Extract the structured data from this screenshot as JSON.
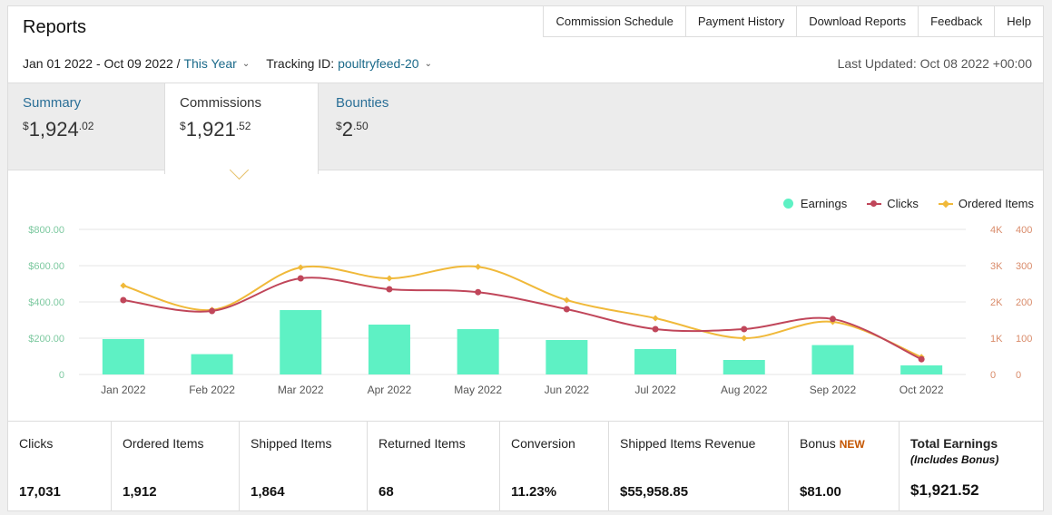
{
  "header": {
    "title": "Reports"
  },
  "topnav": [
    "Commission Schedule",
    "Payment History",
    "Download Reports",
    "Feedback",
    "Help"
  ],
  "filters": {
    "date_range": "Jan 01 2022 - Oct 09 2022 /",
    "period": "This Year",
    "tracking_label": "Tracking ID:",
    "tracking_id": "poultryfeed-20",
    "last_updated": "Last Updated: Oct 08 2022 +00:00"
  },
  "tabs": [
    {
      "label": "Summary",
      "currency": "$",
      "amount": "1,924",
      "cents": ".02",
      "active": false
    },
    {
      "label": "Commissions",
      "currency": "$",
      "amount": "1,921",
      "cents": ".52",
      "active": true
    },
    {
      "label": "Bounties",
      "currency": "$",
      "amount": "2",
      "cents": ".50",
      "active": false
    }
  ],
  "legend": {
    "earnings": "Earnings",
    "clicks": "Clicks",
    "ordered": "Ordered Items"
  },
  "colors": {
    "earnings": "#5ef1c4",
    "clicks": "#c0465a",
    "ordered": "#f0b93a",
    "left_axis": "#7dc9a0",
    "right_axis": "#d98b6a",
    "link": "#2a6f97",
    "new_badge": "#c45500"
  },
  "chart_data": {
    "type": "bar",
    "categories": [
      "Jan 2022",
      "Feb 2022",
      "Mar 2022",
      "Apr 2022",
      "May 2022",
      "Jun 2022",
      "Jul 2022",
      "Aug 2022",
      "Sep 2022",
      "Oct 2022"
    ],
    "series": [
      {
        "name": "Earnings",
        "type": "bar",
        "axis": "left",
        "values": [
          195,
          112,
          355,
          275,
          250,
          190,
          140,
          80,
          162,
          50
        ]
      },
      {
        "name": "Clicks",
        "type": "line",
        "axis": "right-outer",
        "values": [
          2050,
          1750,
          2650,
          2350,
          2270,
          1800,
          1250,
          1250,
          1530,
          420
        ]
      },
      {
        "name": "Ordered Items",
        "type": "line",
        "axis": "right-inner",
        "values": [
          245,
          178,
          295,
          265,
          297,
          205,
          155,
          100,
          145,
          48
        ]
      }
    ],
    "y_left": {
      "ticks": [
        "$800.00",
        "$600.00",
        "$400.00",
        "$200.00",
        "0"
      ],
      "range": [
        0,
        800
      ]
    },
    "y_right_outer": {
      "ticks": [
        "4K",
        "3K",
        "2K",
        "1K",
        "0"
      ],
      "range": [
        0,
        4000
      ]
    },
    "y_right_inner": {
      "ticks": [
        "400",
        "300",
        "200",
        "100",
        "0"
      ],
      "range": [
        0,
        400
      ]
    },
    "legend_position": "top-right",
    "grid": true
  },
  "stats": [
    {
      "label": "Clicks",
      "value": "17,031"
    },
    {
      "label": "Ordered Items",
      "value": "1,912"
    },
    {
      "label": "Shipped Items",
      "value": "1,864"
    },
    {
      "label": "Returned Items",
      "value": "68"
    },
    {
      "label": "Conversion",
      "value": "11.23%"
    },
    {
      "label": "Shipped Items Revenue",
      "value": "$55,958.85"
    },
    {
      "label": "Bonus",
      "badge": "NEW",
      "value": "$81.00"
    },
    {
      "label": "Total Earnings",
      "sub": "(Includes Bonus)",
      "value": "$1,921.52"
    }
  ]
}
